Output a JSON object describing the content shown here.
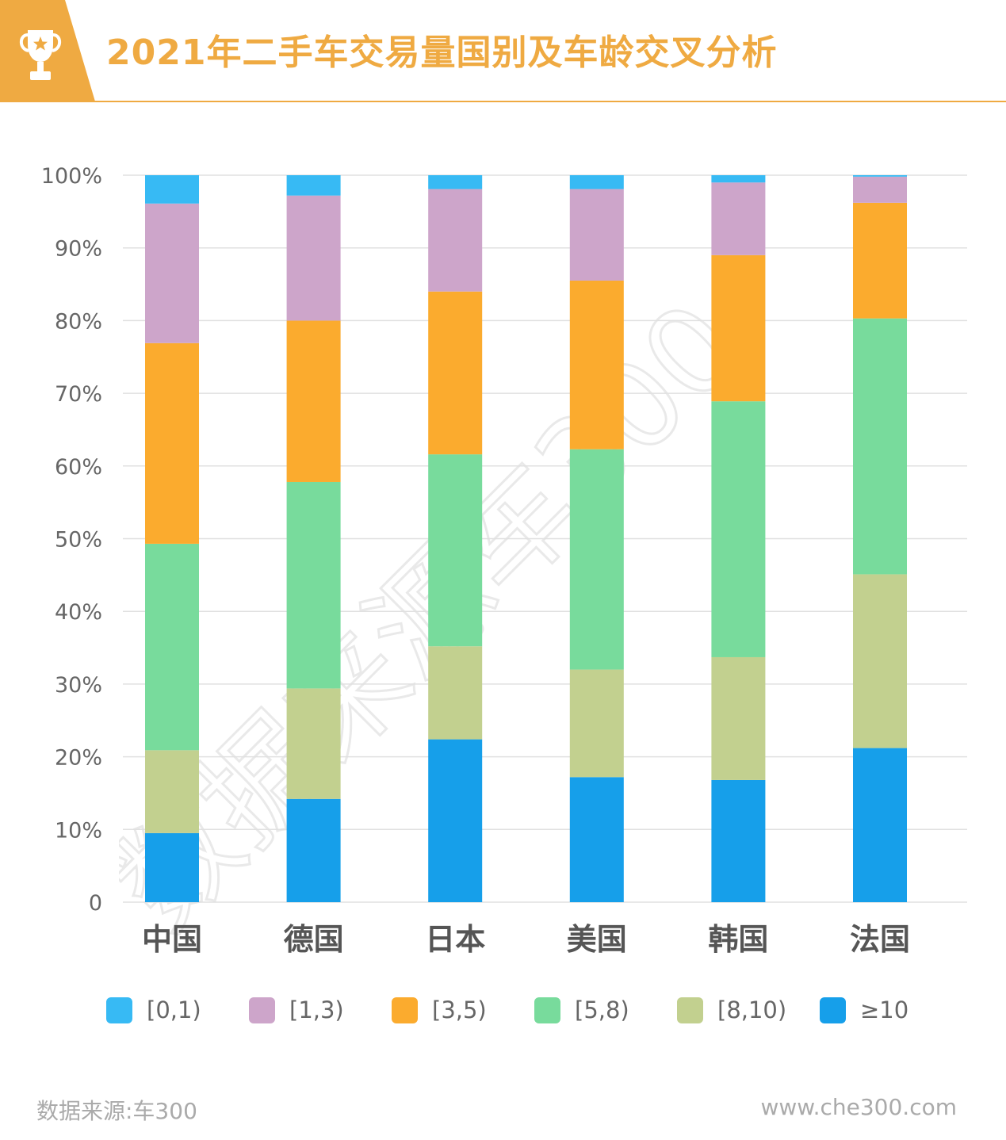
{
  "header": {
    "title": "2021年二手车交易量国别及车龄交叉分析",
    "icon": "trophy-icon",
    "accent_color": "#efaa42"
  },
  "watermark": {
    "text": "数据来源车300"
  },
  "chart_data": {
    "type": "bar",
    "stacked": true,
    "title": "2021年二手车交易量国别及车龄交叉分析",
    "xlabel": "",
    "ylabel": "",
    "ylim": [
      0,
      100
    ],
    "y_ticks": [
      "0",
      "10%",
      "20%",
      "30%",
      "40%",
      "50%",
      "60%",
      "70%",
      "80%",
      "90%",
      "100%"
    ],
    "grid": true,
    "legend_position": "bottom",
    "categories": [
      "中国",
      "德国",
      "日本",
      "美国",
      "韩国",
      "法国"
    ],
    "series": [
      {
        "name": "≥10",
        "color": "#169fea",
        "values": [
          9.5,
          14.2,
          22.4,
          17.2,
          16.8,
          21.2
        ]
      },
      {
        "name": "[8,10)",
        "color": "#c2d08f",
        "values": [
          11.4,
          15.2,
          12.8,
          14.8,
          16.9,
          23.9
        ]
      },
      {
        "name": "[5,8)",
        "color": "#78db9c",
        "values": [
          28.4,
          28.4,
          26.4,
          30.3,
          35.2,
          35.2
        ]
      },
      {
        "name": "[3,5)",
        "color": "#fbab2e",
        "values": [
          27.6,
          22.2,
          22.4,
          23.2,
          20.1,
          15.9
        ]
      },
      {
        "name": "[1,3)",
        "color": "#cda5ca",
        "values": [
          19.2,
          17.2,
          14.1,
          12.6,
          10.0,
          3.6
        ]
      },
      {
        "name": "[0,1)",
        "color": "#37baf4",
        "values": [
          3.9,
          2.8,
          1.9,
          1.9,
          1.0,
          0.2
        ]
      }
    ]
  },
  "legend": [
    {
      "label": "[0,1)",
      "color": "#37baf4"
    },
    {
      "label": "[1,3)",
      "color": "#cda5ca"
    },
    {
      "label": "[3,5)",
      "color": "#fbab2e"
    },
    {
      "label": "[5,8)",
      "color": "#78db9c"
    },
    {
      "label": "[8,10)",
      "color": "#c2d08f"
    },
    {
      "label": "≥10",
      "color": "#169fea"
    }
  ],
  "footer": {
    "source": "数据来源:车300",
    "website": "www.che300.com"
  }
}
